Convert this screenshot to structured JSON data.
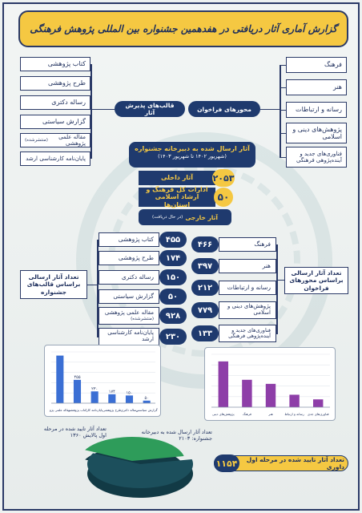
{
  "title": "گزارش آماری آثار دریافتی در هفدهمین جشنواره بین المللی پژوهش فرهنگی",
  "call_axes": {
    "label": "محورهای فراخوان",
    "items": [
      "فرهنگ",
      "هنر",
      "رسانه و ارتباطات",
      "پژوهش‌های دینی و اسلامی",
      "فناوری‌های جدید و آینده‌پژوهی فرهنگی"
    ]
  },
  "acceptance_formats": {
    "label": "قالب‌های پذیرش آثار",
    "items": [
      "کتاب پژوهشی",
      "طرح پژوهشی",
      "رساله دکتری",
      "گزارش سیاستی",
      "مقاله علمی پژوهشی",
      "پایان‌نامه کارشناسی ارشد"
    ],
    "item5_note": "(منتشرشده)"
  },
  "center": {
    "title": "آثار ارسال شده به دبیرخانه جشنواره",
    "subtitle": "(شهریور ۱۴۰۲ تا شهریور ۱۴۰۳)",
    "domestic_label": "آثار داخلی",
    "domestic_count": "۲۰۵۳",
    "offices_label": "ادارات کل فرهنگ و ارشاد اسلامی استان‌ها",
    "offices_count": "۵۰",
    "foreign_label": "آثار خارجی",
    "foreign_note": "(در حال دریافت)"
  },
  "by_axis": {
    "label": "تعداد آثار ارسالی براساس محورهای فراخوان",
    "rows": [
      {
        "label": "فرهنگ",
        "count": "۴۶۶"
      },
      {
        "label": "هنر",
        "count": "۳۹۷"
      },
      {
        "label": "رسانه و ارتباطات",
        "count": "۲۱۲"
      },
      {
        "label": "پژوهش‌های دینی و اسلامی",
        "count": "۷۷۹"
      },
      {
        "label": "فناوری‌های جدید و آینده‌پژوهی فرهنگی",
        "count": "۱۳۳"
      }
    ]
  },
  "by_format": {
    "label": "تعداد آثار ارسالی براساس قالب‌های جشنواره",
    "rows": [
      {
        "label": "کتاب پژوهشی",
        "count": "۴۵۵"
      },
      {
        "label": "طرح پژوهشی",
        "count": "۱۷۴"
      },
      {
        "label": "رساله دکتری",
        "count": "۱۵۰"
      },
      {
        "label": "گزارش سیاستی",
        "count": "۵۰"
      },
      {
        "label": "مقاله علمی پژوهشی",
        "count": "۹۲۸",
        "note": "(منتشرشده)"
      },
      {
        "label": "پایان‌نامه کارشناسی ارشد",
        "count": "۲۳۰"
      }
    ]
  },
  "pie": {
    "note_left": "تعداد آثار تایید شده در مرحله اول پالایش ۱۳۶۰",
    "note_right": "تعداد آثار ارسال شده به دبیرخانه جشنواره: ۲۱۰۳"
  },
  "total": {
    "label": "تعداد آثار تایید شده در مرحله اول داوری",
    "count": "۱۱۵۴"
  },
  "colors": {
    "navy": "#1f3a6e",
    "gold": "#f5c842",
    "pie_green": "#2e9c5a",
    "pie_dark": "#1c4f5c"
  },
  "chart_data": [
    {
      "type": "bar",
      "categories": [
        "مقاله علمی پژوهشی",
        "کتاب پژوهشی",
        "پایان‌نامه کارشناسی ارشد",
        "طرح پژوهشی",
        "رساله دکتری",
        "گزارش سیاستی"
      ],
      "values": [
        928,
        455,
        230,
        174,
        150,
        50
      ],
      "value_labels": [
        "",
        "۴۵۵",
        "۲۳۰",
        "۱۷۴",
        "۱۵۰",
        "۵۰"
      ],
      "ylim": [
        0,
        1000
      ],
      "grid": true
    },
    {
      "type": "bar",
      "categories": [
        "پژوهش‌های دینی و اسلامی",
        "فرهنگ",
        "هنر",
        "رسانه و ارتباطات",
        "فناوری‌های جدید"
      ],
      "values": [
        779,
        466,
        397,
        212,
        133
      ],
      "ylim": [
        0,
        900
      ],
      "grid": true
    },
    {
      "type": "pie",
      "categories": [
        "تایید شده در مرحله اول پالایش",
        "ارسال شده به دبیرخانه"
      ],
      "values": [
        1360,
        2103
      ]
    }
  ]
}
